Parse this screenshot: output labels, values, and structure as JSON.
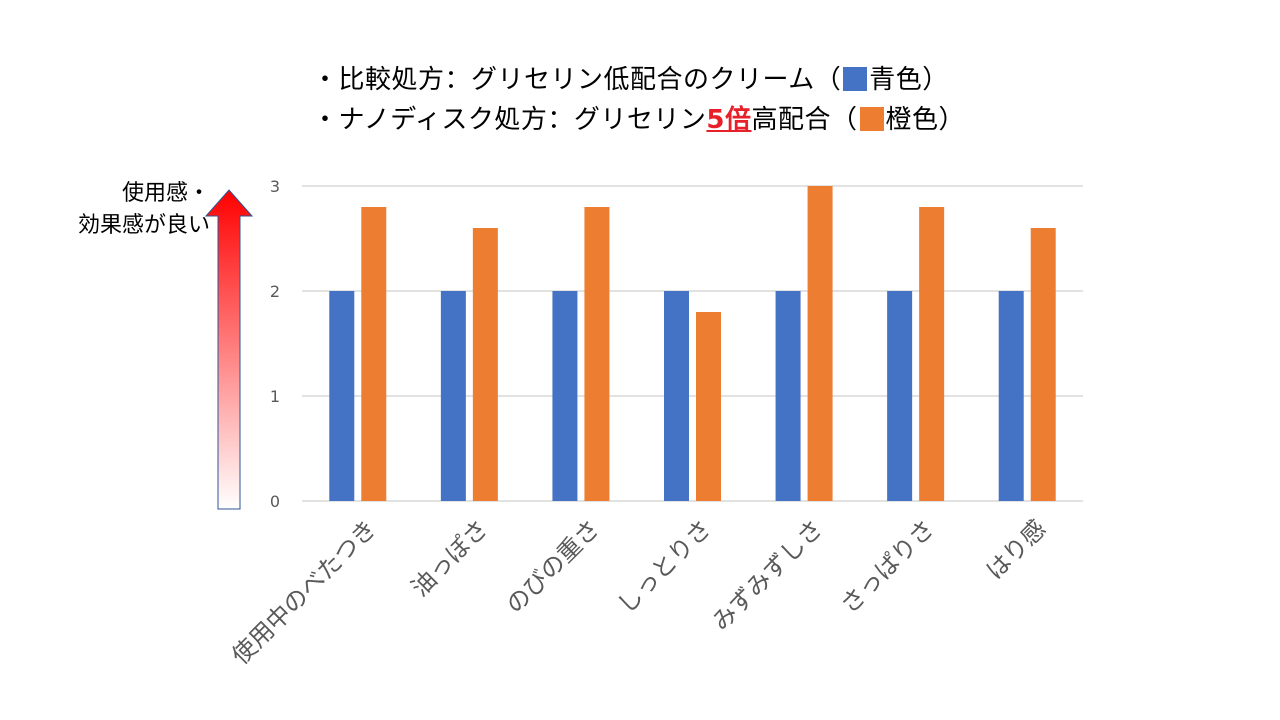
{
  "legend": {
    "line1": {
      "prefix": "・比較処方：グリセリン低配合のクリーム（",
      "color_name": "青色",
      "suffix": "）",
      "swatch_color": "#4472C4"
    },
    "line2": {
      "prefix": "・ナノディスク処方：グリセリン",
      "highlight": "5倍",
      "middle": "高配合（",
      "color_name": "橙色",
      "suffix": "）",
      "swatch_color": "#ED7D31"
    }
  },
  "arrow_label": {
    "line1": "使用感・",
    "line2": "効果感が良い"
  },
  "chart_data": {
    "type": "bar",
    "categories": [
      "使用中のべたつき",
      "油っぽさ",
      "のびの重さ",
      "しっとりさ",
      "みずみずしさ",
      "さっぱりさ",
      "はり感"
    ],
    "series": [
      {
        "values": [
          2,
          2,
          2,
          2,
          2,
          2,
          2
        ],
        "color": "#4472C4"
      },
      {
        "values": [
          2.8,
          2.6,
          2.8,
          1.8,
          3.0,
          2.8,
          2.6
        ],
        "color": "#ED7D31"
      }
    ],
    "ylim": [
      0,
      3
    ],
    "yticks": [
      "0",
      "1",
      "2",
      "3"
    ],
    "grid": true,
    "arrow_color": "#FF0000"
  }
}
